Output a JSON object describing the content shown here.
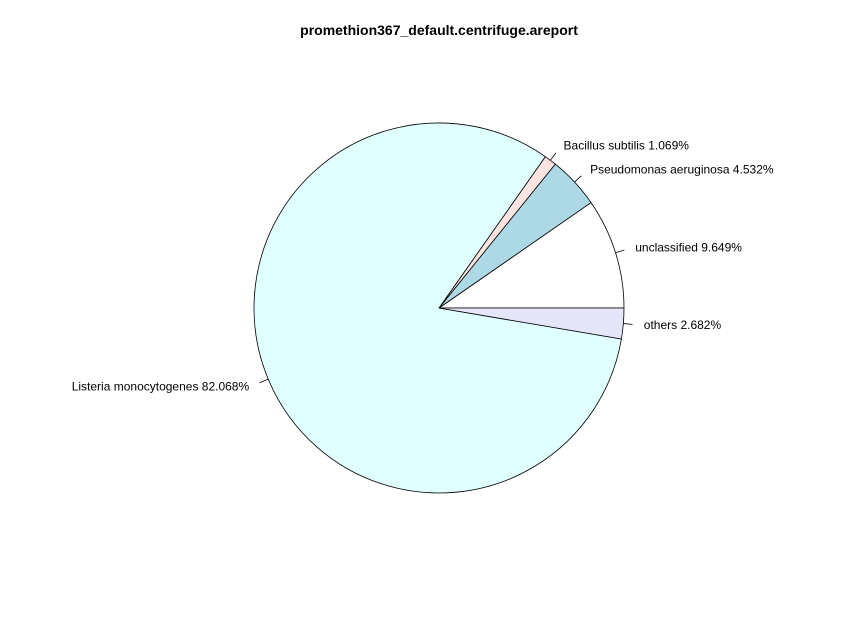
{
  "chart_data": {
    "type": "pie",
    "title": "promethion367_default.centrifuge.areport",
    "slices": [
      {
        "label": "unclassified 9.649%",
        "value": 9.649,
        "color": "#ffffff"
      },
      {
        "label": "Pseudomonas aeruginosa 4.532%",
        "value": 4.532,
        "color": "#add8e6"
      },
      {
        "label": "Bacillus subtilis 1.069%",
        "value": 1.069,
        "color": "#ffe4e1"
      },
      {
        "label": "Listeria monocytogenes 82.068%",
        "value": 82.068,
        "color": "#e0ffff"
      },
      {
        "label": "others 2.682%",
        "value": 2.682,
        "color": "#e6e6fa"
      }
    ],
    "start": "0°, counter-clockwise",
    "legend": "none",
    "grid": false
  }
}
